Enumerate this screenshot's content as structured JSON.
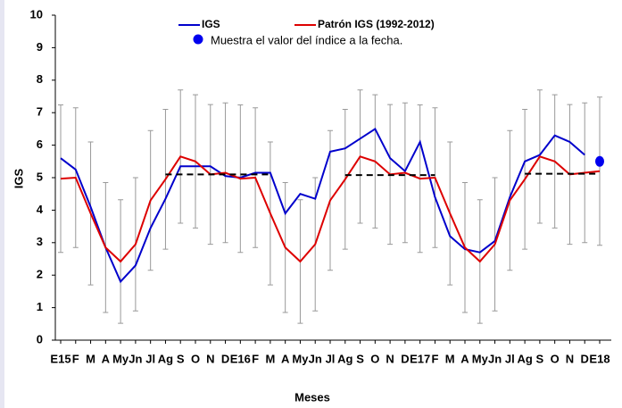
{
  "chart_data": {
    "type": "line",
    "xlabel": "Meses",
    "ylabel": "IGS",
    "categories": [
      "E15",
      "F",
      "M",
      "A",
      "My",
      "Jn",
      "Jl",
      "Ag",
      "S",
      "O",
      "N",
      "D",
      "E16",
      "F",
      "M",
      "A",
      "My",
      "Jn",
      "Jl",
      "Ag",
      "S",
      "O",
      "N",
      "D",
      "E17",
      "F",
      "M",
      "A",
      "My",
      "Jn",
      "Jl",
      "Ag",
      "S",
      "O",
      "N",
      "D",
      "E18"
    ],
    "ylim": [
      0,
      10
    ],
    "yticks": [
      0,
      1,
      2,
      3,
      4,
      5,
      6,
      7,
      8,
      9,
      10
    ],
    "series": [
      {
        "name": "IGS",
        "color": "#0000cc",
        "values": [
          5.6,
          5.25,
          4.1,
          2.85,
          1.8,
          2.3,
          3.45,
          4.35,
          5.35,
          5.35,
          5.35,
          5.05,
          5.0,
          5.15,
          5.15,
          3.9,
          4.5,
          4.35,
          5.8,
          5.9,
          6.2,
          6.5,
          5.6,
          5.2,
          6.1,
          4.4,
          3.2,
          2.8,
          2.7,
          3.05,
          4.4,
          5.5,
          5.7,
          6.3,
          6.1,
          5.7,
          null
        ]
      },
      {
        "name": "Patrón IGS (1992-2012)",
        "color": "#dd0000",
        "error_color": "#999999",
        "values": [
          4.97,
          5.0,
          3.9,
          2.85,
          2.42,
          2.95,
          4.3,
          4.95,
          5.65,
          5.5,
          5.1,
          5.15,
          4.97,
          5.0,
          3.9,
          2.85,
          2.42,
          2.95,
          4.3,
          4.95,
          5.65,
          5.5,
          5.1,
          5.15,
          4.97,
          5.0,
          3.9,
          2.85,
          2.42,
          2.95,
          4.3,
          4.95,
          5.65,
          5.5,
          5.1,
          5.15,
          5.2
        ],
        "errors": [
          2.27,
          2.15,
          2.2,
          2.0,
          1.9,
          2.05,
          2.15,
          2.15,
          2.05,
          2.05,
          2.15,
          2.15,
          2.27,
          2.15,
          2.2,
          2.0,
          1.9,
          2.05,
          2.15,
          2.15,
          2.05,
          2.05,
          2.15,
          2.15,
          2.27,
          2.15,
          2.2,
          2.0,
          1.9,
          2.05,
          2.15,
          2.15,
          2.05,
          2.05,
          2.15,
          2.15,
          2.28
        ]
      },
      {
        "color": "#000000",
        "style": "dashed",
        "values": [
          null,
          null,
          null,
          null,
          null,
          null,
          null,
          5.1,
          5.1,
          5.1,
          5.1,
          5.1,
          5.1,
          5.1,
          5.1,
          null,
          null,
          null,
          null,
          5.08,
          5.08,
          5.08,
          5.08,
          5.08,
          5.08,
          5.08,
          null,
          null,
          null,
          null,
          null,
          5.12,
          5.12,
          5.12,
          5.12,
          5.12,
          5.12
        ]
      },
      {
        "name": "Muestra el valor del índice a la fecha.",
        "color": "#0000ee",
        "marker": "dot",
        "values": [
          null,
          null,
          null,
          null,
          null,
          null,
          null,
          null,
          null,
          null,
          null,
          null,
          null,
          null,
          null,
          null,
          null,
          null,
          null,
          null,
          null,
          null,
          null,
          null,
          null,
          null,
          null,
          null,
          null,
          null,
          null,
          null,
          null,
          null,
          null,
          null,
          5.5
        ]
      }
    ]
  }
}
